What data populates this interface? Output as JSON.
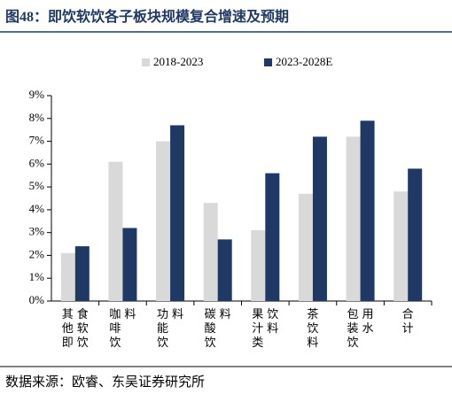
{
  "chart_data": {
    "type": "bar",
    "title": "图48：即饮软饮各子板块规模复合增速及预期",
    "source": "数据来源：欧睿、东吴证券研究所",
    "categories": [
      "其他即食软饮",
      "咖啡饮料",
      "功能饮料",
      "碳酸饮料",
      "果汁类饮料",
      "茶饮料",
      "包装饮用水",
      "合计"
    ],
    "series": [
      {
        "name": "2018-2023",
        "color": "#d9d9d9",
        "values": [
          2.1,
          6.1,
          7.0,
          4.3,
          3.1,
          4.7,
          7.2,
          4.8
        ]
      },
      {
        "name": "2023-2028E",
        "color": "#1f3864",
        "values": [
          2.4,
          3.2,
          7.7,
          2.7,
          5.6,
          7.2,
          7.9,
          5.8
        ]
      }
    ],
    "ylim": [
      0,
      9
    ],
    "yticks": [
      {
        "value": 0,
        "label": "0%"
      },
      {
        "value": 1,
        "label": "1%"
      },
      {
        "value": 2,
        "label": "2%"
      },
      {
        "value": 3,
        "label": "3%"
      },
      {
        "value": 4,
        "label": "4%"
      },
      {
        "value": 5,
        "label": "5%"
      },
      {
        "value": 6,
        "label": "6%"
      },
      {
        "value": 7,
        "label": "7%"
      },
      {
        "value": 8,
        "label": "8%"
      },
      {
        "value": 9,
        "label": "9%"
      }
    ]
  }
}
